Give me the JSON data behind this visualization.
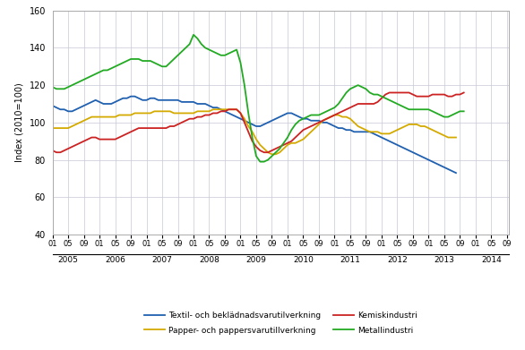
{
  "title": "",
  "ylabel": "Index (2010=100)",
  "ylim": [
    40,
    160
  ],
  "yticks": [
    40,
    60,
    80,
    100,
    120,
    140,
    160
  ],
  "background_color": "#ffffff",
  "grid_color": "#c8c8d8",
  "legend_labels": [
    "Textil- och beklädnadsvarutilverkning",
    "Papper- och pappersvarutillverkning",
    "Kemiskindustri",
    "Metallindustri"
  ],
  "line_colors": [
    "#2060b0",
    "#d4aa00",
    "#cc2222",
    "#22aa22"
  ],
  "textil": [
    109,
    108,
    107,
    107,
    106,
    106,
    107,
    108,
    109,
    110,
    111,
    112,
    111,
    110,
    110,
    110,
    111,
    112,
    113,
    113,
    114,
    114,
    113,
    112,
    112,
    113,
    113,
    112,
    112,
    112,
    112,
    112,
    112,
    111,
    111,
    111,
    111,
    110,
    110,
    110,
    109,
    108,
    108,
    107,
    106,
    105,
    104,
    103,
    102,
    101,
    100,
    99,
    98,
    98,
    99,
    100,
    101,
    102,
    103,
    104,
    105,
    105,
    104,
    103,
    102,
    102,
    101,
    101,
    101,
    100,
    100,
    99,
    98,
    97,
    97,
    96,
    96,
    95,
    95,
    95,
    95,
    95,
    94,
    93,
    92,
    91,
    90,
    89,
    88,
    87,
    86,
    85,
    84,
    83,
    82,
    81,
    80,
    79,
    78,
    77,
    76,
    75,
    74,
    73
  ],
  "papper": [
    97,
    97,
    97,
    97,
    97,
    98,
    99,
    100,
    101,
    102,
    103,
    103,
    103,
    103,
    103,
    103,
    103,
    104,
    104,
    104,
    104,
    105,
    105,
    105,
    105,
    105,
    106,
    106,
    106,
    106,
    106,
    105,
    105,
    105,
    105,
    105,
    105,
    106,
    106,
    106,
    106,
    107,
    107,
    107,
    107,
    107,
    107,
    107,
    105,
    102,
    98,
    95,
    91,
    88,
    86,
    84,
    83,
    83,
    84,
    86,
    88,
    89,
    89,
    90,
    91,
    93,
    95,
    97,
    99,
    101,
    102,
    103,
    104,
    104,
    103,
    103,
    102,
    100,
    98,
    97,
    96,
    95,
    95,
    95,
    94,
    94,
    94,
    95,
    96,
    97,
    98,
    99,
    99,
    99,
    98,
    98,
    97,
    96,
    95,
    94,
    93,
    92,
    92,
    92
  ],
  "kemi": [
    85,
    84,
    84,
    85,
    86,
    87,
    88,
    89,
    90,
    91,
    92,
    92,
    91,
    91,
    91,
    91,
    91,
    92,
    93,
    94,
    95,
    96,
    97,
    97,
    97,
    97,
    97,
    97,
    97,
    97,
    98,
    98,
    99,
    100,
    101,
    102,
    102,
    103,
    103,
    104,
    104,
    105,
    105,
    106,
    106,
    107,
    107,
    107,
    105,
    100,
    95,
    90,
    87,
    85,
    84,
    84,
    85,
    86,
    87,
    88,
    89,
    90,
    92,
    94,
    96,
    97,
    98,
    99,
    100,
    101,
    102,
    103,
    104,
    105,
    106,
    107,
    108,
    109,
    110,
    110,
    110,
    110,
    110,
    111,
    113,
    115,
    116,
    116,
    116,
    116,
    116,
    116,
    115,
    114,
    114,
    114,
    114,
    115,
    115,
    115,
    115,
    114,
    114,
    115,
    115,
    116
  ],
  "metall": [
    119,
    118,
    118,
    118,
    119,
    120,
    121,
    122,
    123,
    124,
    125,
    126,
    127,
    128,
    128,
    129,
    130,
    131,
    132,
    133,
    134,
    134,
    134,
    133,
    133,
    133,
    132,
    131,
    130,
    130,
    132,
    134,
    136,
    138,
    140,
    142,
    147,
    145,
    142,
    140,
    139,
    138,
    137,
    136,
    136,
    137,
    138,
    139,
    132,
    120,
    105,
    92,
    82,
    79,
    79,
    80,
    82,
    84,
    86,
    89,
    92,
    96,
    99,
    101,
    102,
    103,
    104,
    104,
    104,
    105,
    106,
    107,
    108,
    110,
    113,
    116,
    118,
    119,
    120,
    119,
    118,
    116,
    115,
    115,
    114,
    113,
    112,
    111,
    110,
    109,
    108,
    107,
    107,
    107,
    107,
    107,
    107,
    106,
    105,
    104,
    103,
    103,
    104,
    105,
    106,
    106
  ]
}
